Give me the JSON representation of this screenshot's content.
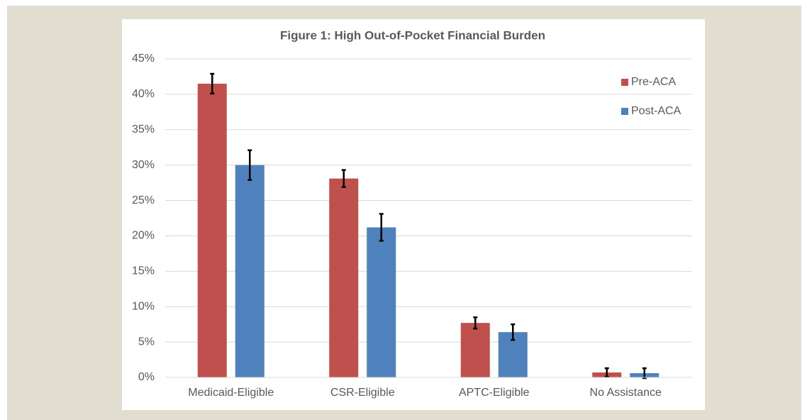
{
  "chart_data": {
    "type": "bar",
    "title": "Figure 1: High Out-of-Pocket Financial Burden",
    "categories": [
      "Medicaid-Eligible",
      "CSR-Eligible",
      "APTC-Eligible",
      "No Assistance"
    ],
    "series": [
      {
        "name": "Pre-ACA",
        "color": "#c0504d",
        "values": [
          41.5,
          28.1,
          7.7,
          0.7
        ],
        "errors": [
          1.4,
          1.2,
          0.8,
          0.6
        ]
      },
      {
        "name": "Post-ACA",
        "color": "#4f81bd",
        "values": [
          30.0,
          21.2,
          6.4,
          0.6
        ],
        "errors": [
          2.1,
          1.9,
          1.1,
          0.7
        ]
      }
    ],
    "ylim": [
      0,
      45
    ],
    "yticks": [
      {
        "value": 0,
        "label": "0%"
      },
      {
        "value": 5,
        "label": "5%"
      },
      {
        "value": 10,
        "label": "10%"
      },
      {
        "value": 15,
        "label": "15%"
      },
      {
        "value": 20,
        "label": "20%"
      },
      {
        "value": 25,
        "label": "25%"
      },
      {
        "value": 30,
        "label": "30%"
      },
      {
        "value": 35,
        "label": "35%"
      },
      {
        "value": 40,
        "label": "40%"
      },
      {
        "value": 45,
        "label": "45%"
      }
    ],
    "grid": true,
    "legend": "top-right"
  }
}
